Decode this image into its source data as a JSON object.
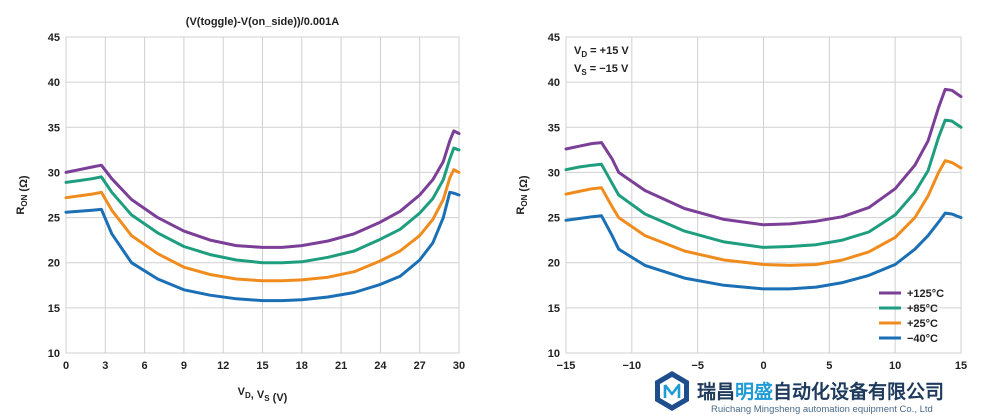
{
  "chart_data": [
    {
      "type": "line",
      "title": "(V(toggle)-V(on_side))/0.001A",
      "xlabel": "V_D, V_S (V)",
      "ylabel": "R_ON (Ω)",
      "xlim": [
        0,
        30
      ],
      "ylim": [
        10,
        45
      ],
      "xticks": [
        0,
        3,
        6,
        9,
        12,
        15,
        18,
        21,
        24,
        27,
        30
      ],
      "yticks": [
        10,
        15,
        20,
        25,
        30,
        35,
        40,
        45
      ],
      "grid": true,
      "series": [
        {
          "color": "#7b3f98",
          "x": [
            0,
            1,
            2,
            2.7,
            3.5,
            5,
            7,
            9,
            11,
            13,
            15,
            16.5,
            18,
            20,
            22,
            24,
            25.5,
            27,
            28,
            28.8,
            29.3,
            29.6,
            30
          ],
          "y": [
            30,
            30.3,
            30.6,
            30.8,
            29.3,
            27,
            25,
            23.5,
            22.5,
            21.9,
            21.7,
            21.7,
            21.9,
            22.4,
            23.2,
            24.5,
            25.7,
            27.5,
            29.2,
            31.2,
            33.5,
            34.6,
            34.3
          ]
        },
        {
          "color": "#1e9e7e",
          "x": [
            0,
            1,
            2,
            2.7,
            3.5,
            5,
            7,
            9,
            11,
            13,
            15,
            16.5,
            18,
            20,
            22,
            24,
            25.5,
            27,
            28,
            28.8,
            29.3,
            29.6,
            30
          ],
          "y": [
            28.9,
            29.1,
            29.3,
            29.5,
            27.8,
            25.3,
            23.3,
            21.8,
            20.9,
            20.3,
            20.0,
            20.0,
            20.1,
            20.6,
            21.3,
            22.6,
            23.7,
            25.5,
            27.1,
            29.2,
            31.5,
            32.7,
            32.5
          ]
        },
        {
          "color": "#f08c1e",
          "x": [
            0,
            1,
            2,
            2.7,
            3.5,
            5,
            7,
            9,
            11,
            13,
            15,
            16.5,
            18,
            20,
            22,
            24,
            25.5,
            27,
            28,
            28.8,
            29.3,
            29.6,
            30
          ],
          "y": [
            27.2,
            27.4,
            27.6,
            27.8,
            25.8,
            23.0,
            21.0,
            19.5,
            18.7,
            18.2,
            18.0,
            18.0,
            18.1,
            18.4,
            19.0,
            20.2,
            21.3,
            23.0,
            24.8,
            27.0,
            29.4,
            30.3,
            30.0
          ]
        },
        {
          "color": "#1a6fb5",
          "x": [
            0,
            1,
            2,
            2.7,
            3.5,
            5,
            7,
            9,
            11,
            13,
            15,
            16.5,
            18,
            20,
            22,
            24,
            25.5,
            27,
            28,
            28.8,
            29.3,
            29.6,
            30
          ],
          "y": [
            25.6,
            25.7,
            25.8,
            25.9,
            23.2,
            20.0,
            18.2,
            17.0,
            16.4,
            16.0,
            15.8,
            15.8,
            15.9,
            16.2,
            16.7,
            17.6,
            18.5,
            20.3,
            22.2,
            25.0,
            27.8,
            27.7,
            27.5
          ]
        }
      ]
    },
    {
      "type": "line",
      "title": "",
      "xlabel": "",
      "ylabel": "R_ON (Ω)",
      "xlim": [
        -15,
        15
      ],
      "ylim": [
        10,
        45
      ],
      "xticks": [
        -15,
        -10,
        -5,
        0,
        5,
        10,
        15
      ],
      "xticklabels": [
        "−15",
        "−10",
        "−5",
        "0",
        "5",
        "10",
        "15"
      ],
      "yticks": [
        10,
        15,
        20,
        25,
        30,
        35,
        40,
        45
      ],
      "grid": true,
      "annotation": {
        "line1_main": "V",
        "line1_sub": "D",
        "line1_rest": " = +15 V",
        "line2_main": "V",
        "line2_sub": "S",
        "line2_rest": " = −15 V"
      },
      "legend_position": "bottom-right",
      "series": [
        {
          "name": "+125°C",
          "color": "#7b3f98",
          "x": [
            -15,
            -14,
            -13,
            -12.3,
            -11.5,
            -11,
            -9,
            -6,
            -3,
            0,
            2,
            4,
            6,
            8,
            10,
            11.5,
            12.5,
            13.3,
            13.8,
            14.3,
            15
          ],
          "y": [
            32.6,
            32.9,
            33.2,
            33.3,
            31.5,
            30.0,
            28.0,
            26.0,
            24.8,
            24.2,
            24.3,
            24.6,
            25.1,
            26.1,
            28.2,
            30.8,
            33.5,
            37.2,
            39.2,
            39.1,
            38.4
          ]
        },
        {
          "name": "+85°C",
          "color": "#1e9e7e",
          "x": [
            -15,
            -14,
            -13,
            -12.3,
            -11.5,
            -11,
            -9,
            -6,
            -3,
            0,
            2,
            4,
            6,
            8,
            10,
            11.5,
            12.5,
            13.3,
            13.8,
            14.3,
            15
          ],
          "y": [
            30.3,
            30.6,
            30.8,
            30.9,
            28.8,
            27.5,
            25.4,
            23.5,
            22.3,
            21.7,
            21.8,
            22.0,
            22.5,
            23.4,
            25.3,
            27.8,
            30.2,
            33.9,
            35.8,
            35.7,
            35.0
          ]
        },
        {
          "name": "+25°C",
          "color": "#f08c1e",
          "x": [
            -15,
            -14,
            -13,
            -12.3,
            -11.5,
            -11,
            -9,
            -6,
            -3,
            0,
            2,
            4,
            6,
            8,
            10,
            11.5,
            12.5,
            13.3,
            13.8,
            14.3,
            15
          ],
          "y": [
            27.6,
            27.9,
            28.2,
            28.3,
            26.2,
            25.0,
            23.0,
            21.3,
            20.3,
            19.8,
            19.7,
            19.8,
            20.3,
            21.2,
            22.8,
            25.0,
            27.4,
            30.0,
            31.3,
            31.1,
            30.5
          ]
        },
        {
          "name": "−40°C",
          "color": "#1a6fb5",
          "x": [
            -15,
            -14,
            -13,
            -12.3,
            -11.5,
            -11,
            -9,
            -6,
            -3,
            0,
            2,
            4,
            6,
            8,
            10,
            11.5,
            12.5,
            13.3,
            13.8,
            14.3,
            15
          ],
          "y": [
            24.7,
            24.9,
            25.1,
            25.2,
            23.0,
            21.5,
            19.7,
            18.3,
            17.5,
            17.1,
            17.1,
            17.3,
            17.8,
            18.6,
            19.8,
            21.5,
            23.0,
            24.5,
            25.5,
            25.4,
            25.0
          ]
        }
      ]
    }
  ],
  "watermark": {
    "brand_cn_1": "瑞昌",
    "brand_cn_2": "明盛",
    "brand_cn_3": "自动化设备有限公司",
    "brand_en": "Ruichang Mingsheng automation equipment Co., Ltd"
  }
}
